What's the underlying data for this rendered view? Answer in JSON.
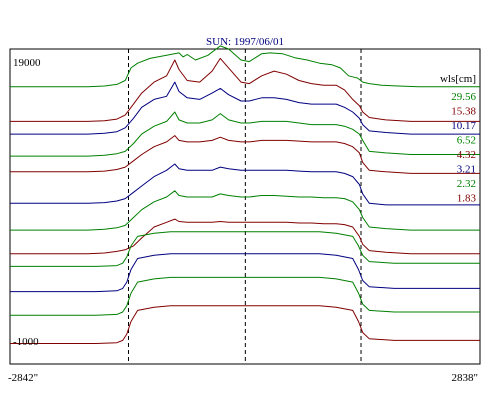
{
  "chart_data": {
    "type": "line",
    "title": "SUN: 1997/06/01",
    "ylim": [
      -1000,
      19000
    ],
    "y_tick_labels": [
      "19000",
      "-1000"
    ],
    "xlim": [
      -2842,
      2838
    ],
    "x_tick_labels": [
      "-2842\"",
      "2838\""
    ],
    "vertical_lines": [
      -1410,
      2,
      1400
    ],
    "grid": false,
    "legend_position": "top-right",
    "legend_title": "wls[cm]",
    "series": [
      {
        "name": "29.56",
        "color": "#008000",
        "x": [
          -2842,
          -1900,
          -1700,
          -1550,
          -1450,
          -1380,
          -1300,
          -1150,
          -950,
          -800,
          -750,
          -700,
          -600,
          -450,
          -300,
          -200,
          -50,
          50,
          200,
          300,
          450,
          600,
          750,
          900,
          1050,
          1150,
          1250,
          1320,
          1360,
          1420,
          1500,
          1650,
          1850,
          2100,
          2838
        ],
        "y": [
          16600,
          16600,
          16650,
          16750,
          17000,
          17800,
          18100,
          18400,
          18600,
          18750,
          18500,
          18650,
          18300,
          18600,
          19200,
          19000,
          18300,
          18200,
          18700,
          18750,
          18700,
          18450,
          18300,
          18100,
          18000,
          17800,
          17300,
          17200,
          17150,
          16900,
          16800,
          16700,
          16650,
          16600,
          16600
        ]
      },
      {
        "name": "15.38",
        "color": "#800000",
        "x": [
          -2842,
          -1900,
          -1700,
          -1550,
          -1450,
          -1350,
          -1250,
          -1100,
          -950,
          -850,
          -800,
          -700,
          -550,
          -400,
          -300,
          -200,
          -50,
          50,
          200,
          350,
          500,
          650,
          800,
          950,
          1100,
          1200,
          1300,
          1380,
          1420,
          1500,
          1700,
          2000,
          2838
        ],
        "y": [
          14400,
          14400,
          14450,
          14550,
          14800,
          15500,
          16200,
          16900,
          17300,
          18300,
          17700,
          17000,
          16900,
          17600,
          18400,
          17800,
          16900,
          16800,
          17300,
          17600,
          17400,
          17000,
          16800,
          16700,
          16700,
          16400,
          15800,
          15400,
          15000,
          14650,
          14500,
          14400,
          14400
        ]
      },
      {
        "name": "10.17",
        "color": "#000080",
        "x": [
          -2842,
          -1900,
          -1700,
          -1550,
          -1450,
          -1350,
          -1250,
          -1100,
          -950,
          -850,
          -800,
          -700,
          -550,
          -400,
          -300,
          -200,
          -50,
          50,
          200,
          350,
          500,
          650,
          800,
          950,
          1100,
          1200,
          1300,
          1380,
          1420,
          1500,
          1700,
          2000,
          2838
        ],
        "y": [
          13600,
          13600,
          13650,
          13750,
          14000,
          14600,
          15300,
          15800,
          16000,
          16900,
          16300,
          15900,
          15800,
          16200,
          16500,
          16100,
          15700,
          15700,
          15900,
          15900,
          15800,
          15600,
          15500,
          15500,
          15500,
          15300,
          15000,
          14600,
          14200,
          13800,
          13700,
          13600,
          13600
        ]
      },
      {
        "name": "6.52",
        "color": "#008000",
        "x": [
          -2842,
          -1900,
          -1700,
          -1550,
          -1450,
          -1350,
          -1250,
          -1100,
          -950,
          -850,
          -800,
          -700,
          -550,
          -400,
          -300,
          -200,
          -50,
          50,
          200,
          350,
          500,
          650,
          800,
          950,
          1100,
          1200,
          1300,
          1380,
          1420,
          1500,
          1700,
          2000,
          2838
        ],
        "y": [
          12200,
          12200,
          12250,
          12350,
          12500,
          13000,
          13600,
          14100,
          14400,
          15000,
          14500,
          14300,
          14300,
          14500,
          14900,
          14500,
          14300,
          14300,
          14400,
          14400,
          14400,
          14300,
          14200,
          14200,
          14200,
          14100,
          13900,
          13600,
          13200,
          12500,
          12400,
          12300,
          12300
        ]
      },
      {
        "name": "4.32",
        "color": "#800000",
        "x": [
          -2842,
          -1900,
          -1700,
          -1550,
          -1450,
          -1350,
          -1250,
          -1100,
          -950,
          -850,
          -800,
          -700,
          -550,
          -400,
          -300,
          -200,
          -50,
          50,
          200,
          350,
          500,
          650,
          800,
          950,
          1100,
          1200,
          1300,
          1380,
          1420,
          1500,
          1700,
          2000,
          2838
        ],
        "y": [
          11200,
          11200,
          11250,
          11350,
          11500,
          11900,
          12300,
          12800,
          13100,
          13500,
          13200,
          13100,
          13100,
          13200,
          13400,
          13200,
          13100,
          13100,
          13200,
          13200,
          13200,
          13150,
          13100,
          13100,
          13100,
          13000,
          12800,
          12400,
          11800,
          11300,
          11200,
          11100,
          11100
        ]
      },
      {
        "name": "3.21",
        "color": "#000080",
        "x": [
          -2842,
          -1900,
          -1700,
          -1550,
          -1450,
          -1350,
          -1250,
          -1100,
          -950,
          -850,
          -800,
          -700,
          -550,
          -400,
          -300,
          -200,
          -50,
          50,
          200,
          350,
          500,
          650,
          800,
          950,
          1100,
          1200,
          1300,
          1380,
          1420,
          1500,
          1700,
          2000,
          2838
        ],
        "y": [
          9200,
          9200,
          9250,
          9350,
          9500,
          9900,
          10300,
          10900,
          11300,
          11700,
          11400,
          11300,
          11300,
          11300,
          11500,
          11400,
          11300,
          11300,
          11300,
          11300,
          11300,
          11250,
          11200,
          11200,
          11200,
          11100,
          10900,
          10400,
          9800,
          9200,
          9100,
          9100,
          9100
        ]
      },
      {
        "name": "2.32",
        "color": "#008000",
        "x": [
          -2842,
          -1900,
          -1700,
          -1550,
          -1450,
          -1350,
          -1250,
          -1100,
          -950,
          -850,
          -800,
          -700,
          -550,
          -400,
          -300,
          -200,
          -50,
          50,
          200,
          350,
          500,
          650,
          800,
          950,
          1100,
          1200,
          1300,
          1380,
          1420,
          1500,
          1700,
          2000,
          2838
        ],
        "y": [
          7500,
          7500,
          7550,
          7650,
          7800,
          8300,
          8800,
          9300,
          9600,
          10000,
          9700,
          9600,
          9600,
          9600,
          9800,
          9700,
          9600,
          9600,
          9700,
          9700,
          9650,
          9600,
          9600,
          9550,
          9550,
          9500,
          9300,
          8800,
          8300,
          7700,
          7600,
          7500,
          7500
        ]
      },
      {
        "name": "1.83",
        "color": "#800000",
        "x": [
          -2842,
          -1900,
          -1700,
          -1550,
          -1450,
          -1350,
          -1250,
          -1100,
          -950,
          -850,
          -800,
          -700,
          -550,
          -400,
          -300,
          -200,
          -50,
          50,
          200,
          350,
          500,
          650,
          800,
          950,
          1100,
          1200,
          1300,
          1380,
          1420,
          1500,
          1700,
          2000,
          2838
        ],
        "y": [
          6000,
          6000,
          6050,
          6150,
          6250,
          6500,
          7000,
          7700,
          8000,
          8200,
          8050,
          8000,
          8000,
          8000,
          8050,
          8000,
          8000,
          8000,
          8000,
          8000,
          8000,
          7950,
          7950,
          7900,
          7900,
          7850,
          7700,
          7100,
          6600,
          6200,
          6100,
          6000,
          6000
        ]
      }
    ],
    "baselines": [
      {
        "color": "#008000",
        "x": [
          -2842,
          -1800,
          -1550,
          -1480,
          -1430,
          -1380,
          -1300,
          -1100,
          -900,
          0,
          900,
          1100,
          1300,
          1370,
          1420,
          1500,
          1800,
          2838
        ],
        "y": [
          5200,
          5200,
          5250,
          5400,
          5800,
          6500,
          7100,
          7300,
          7400,
          7400,
          7400,
          7300,
          7100,
          6500,
          5900,
          5500,
          5400,
          5400
        ]
      },
      {
        "color": "#000080",
        "x": [
          -2842,
          -1800,
          -1550,
          -1480,
          -1430,
          -1380,
          -1300,
          -1100,
          -900,
          0,
          900,
          1100,
          1300,
          1370,
          1420,
          1500,
          1800,
          2838
        ],
        "y": [
          3600,
          3600,
          3650,
          3800,
          4200,
          5000,
          5700,
          5900,
          6000,
          6000,
          6000,
          5900,
          5700,
          5000,
          4300,
          3900,
          3800,
          3800
        ]
      },
      {
        "color": "#008000",
        "x": [
          -2842,
          -1800,
          -1550,
          -1480,
          -1430,
          -1380,
          -1300,
          -1100,
          -900,
          0,
          900,
          1100,
          1300,
          1370,
          1420,
          1500,
          1800,
          2838
        ],
        "y": [
          2100,
          2100,
          2150,
          2300,
          2700,
          3500,
          4200,
          4400,
          4500,
          4500,
          4500,
          4400,
          4200,
          3500,
          2800,
          2400,
          2300,
          2300
        ]
      },
      {
        "color": "#800000",
        "x": [
          -2842,
          -1800,
          -1550,
          -1480,
          -1430,
          -1380,
          -1300,
          -1100,
          -900,
          0,
          900,
          1100,
          1300,
          1370,
          1420,
          1500,
          1800,
          2838
        ],
        "y": [
          300,
          300,
          350,
          500,
          900,
          1700,
          2400,
          2600,
          2700,
          2700,
          2700,
          2600,
          2400,
          1700,
          1000,
          600,
          500,
          500
        ]
      }
    ]
  }
}
